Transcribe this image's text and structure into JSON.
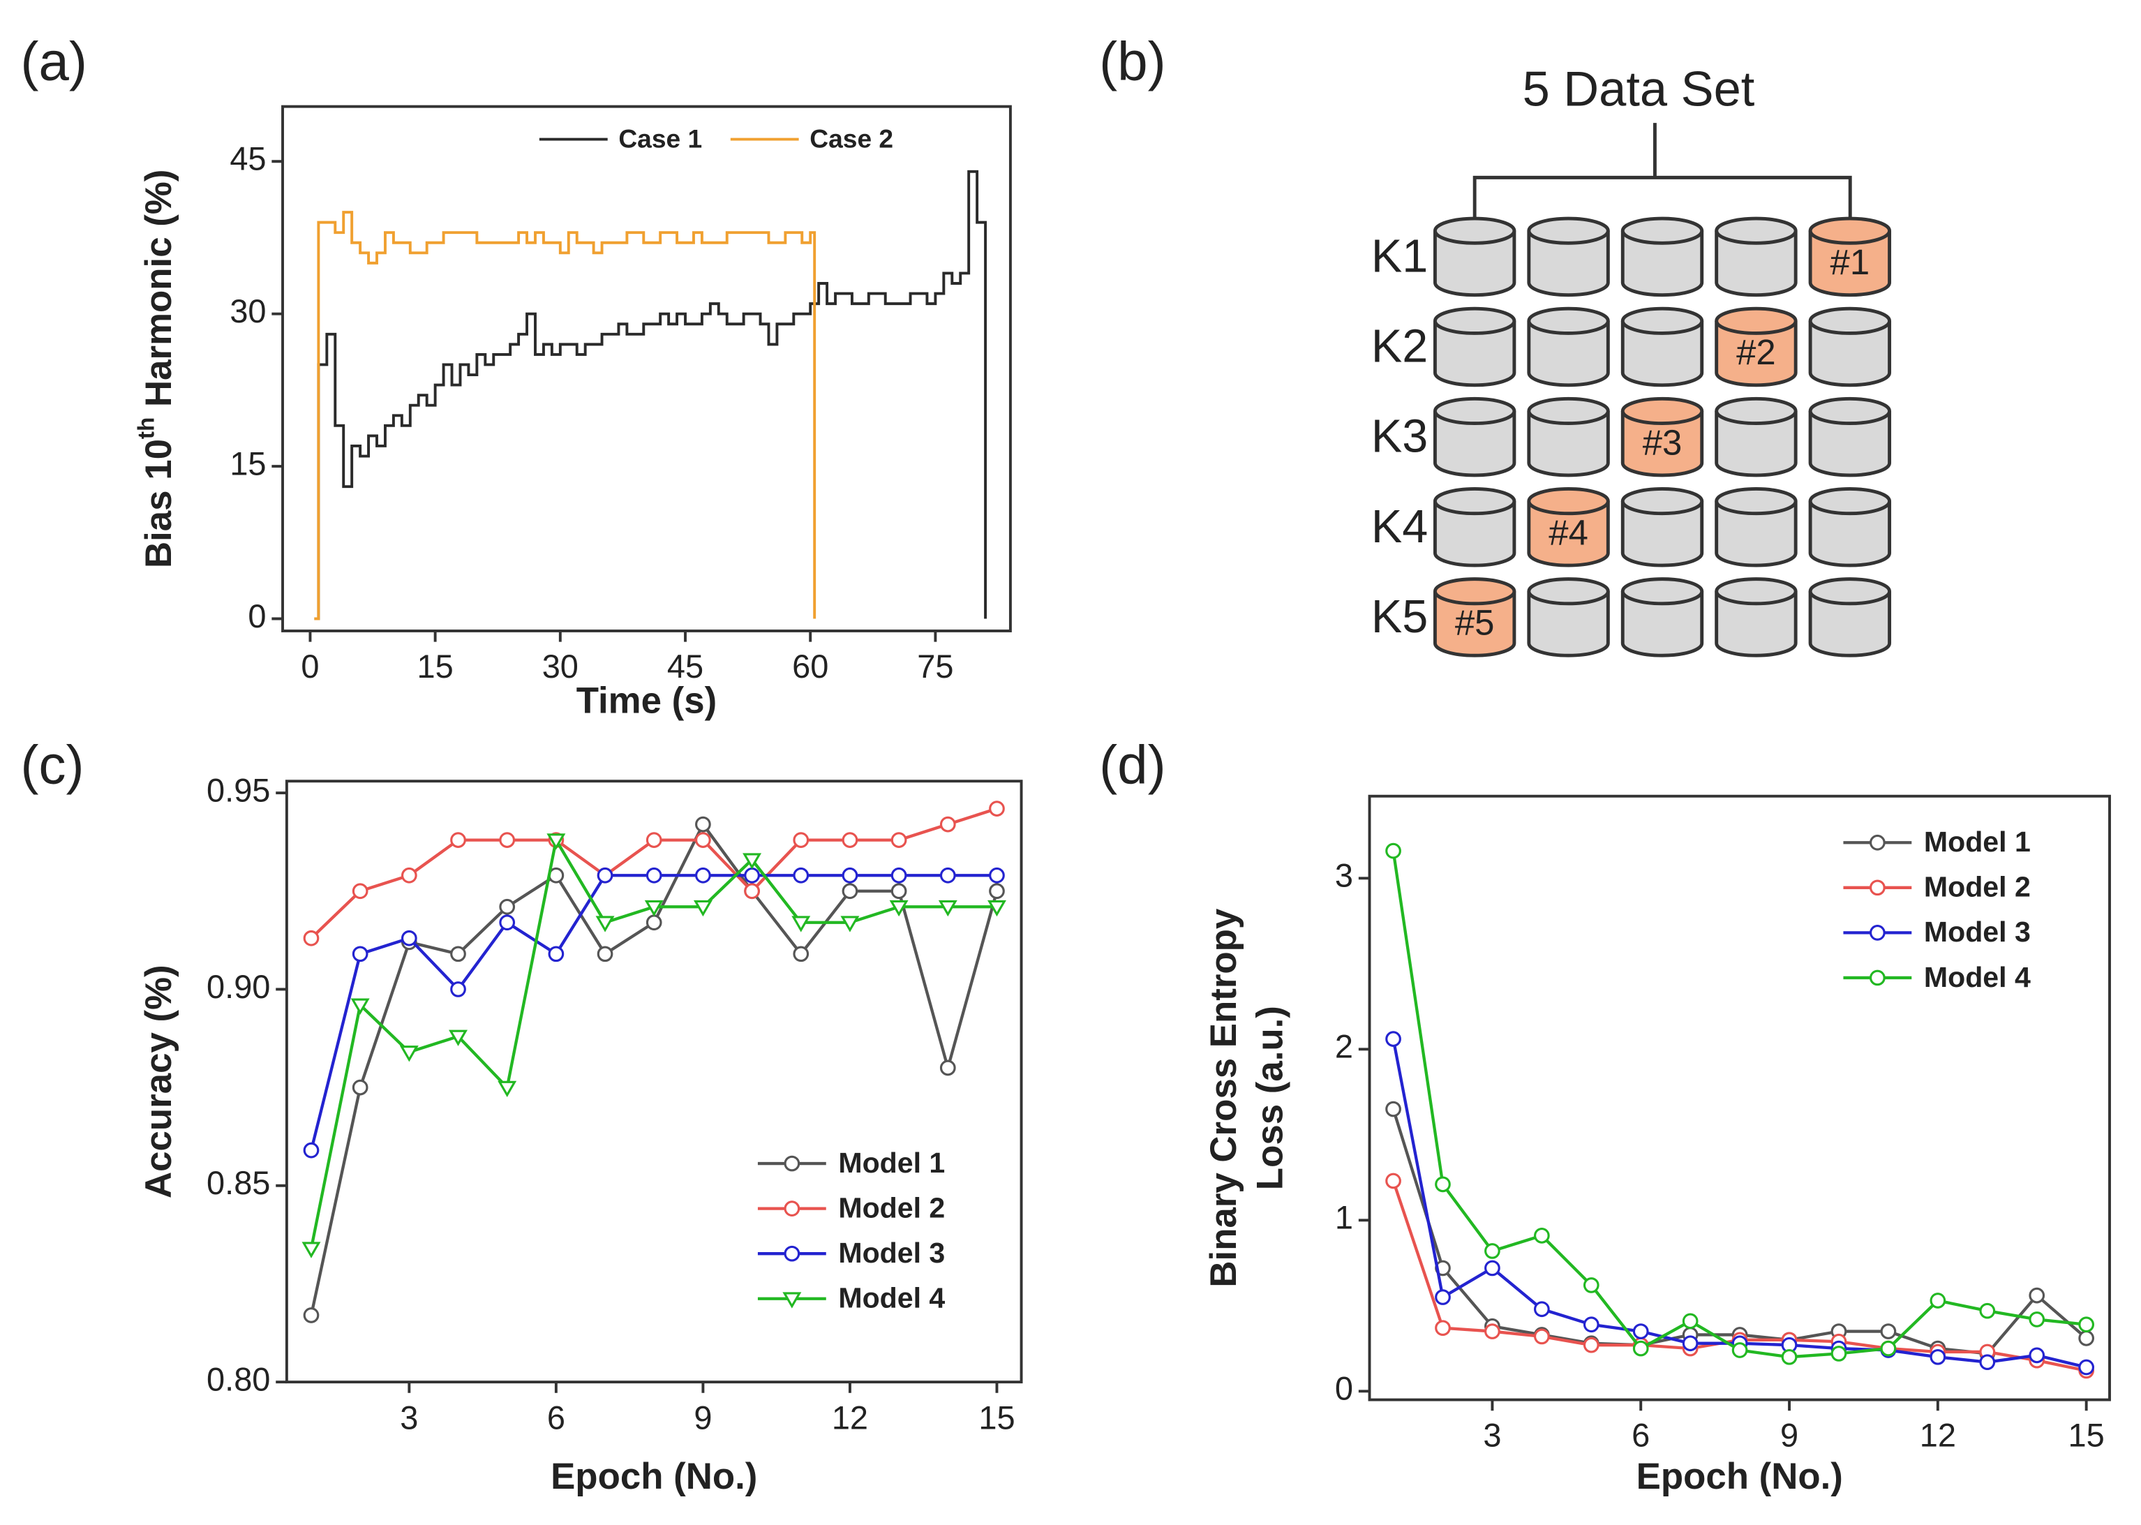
{
  "chart_data": [
    {
      "type": "line",
      "panel_label": "(a)",
      "step": "post",
      "x_label": "Time (s)",
      "y_label": [
        "Bias 10",
        "th",
        " Harmonic (%)"
      ],
      "xlim": [
        -3.3,
        84
      ],
      "ylim": [
        -1.2,
        50.4
      ],
      "xticks": [
        0,
        15,
        30,
        45,
        60,
        75
      ],
      "yticks": [
        0,
        15,
        30,
        45
      ],
      "legend": "upper right",
      "series": [
        {
          "name": "Case 1",
          "color": "#2a2a2a",
          "marker": "none",
          "x": [
            0.5,
            1,
            2,
            3,
            4,
            5,
            6,
            7,
            8,
            9,
            10,
            11,
            12,
            13,
            14,
            15,
            16,
            17,
            18,
            19,
            20,
            21,
            22,
            24,
            25,
            26,
            27,
            28,
            29,
            30,
            32,
            33,
            35,
            37,
            38,
            40,
            42,
            43,
            44,
            45,
            47,
            48,
            49,
            50,
            52,
            54,
            55,
            56,
            58,
            60,
            61,
            62,
            63,
            65,
            67,
            69,
            72,
            74,
            75,
            76,
            77,
            78,
            79,
            80,
            81
          ],
          "values": [
            0,
            25,
            28,
            19,
            13,
            17,
            16,
            18,
            17,
            19,
            20,
            19,
            21,
            22,
            21,
            23,
            25,
            23,
            25,
            24,
            26,
            25,
            26,
            27,
            28,
            30,
            26,
            27,
            26,
            27,
            26,
            27,
            28,
            29,
            28,
            29,
            30,
            29,
            30,
            29,
            30,
            31,
            30,
            29,
            30,
            29,
            27,
            29,
            30,
            31,
            33,
            31,
            32,
            31,
            32,
            31,
            32,
            31,
            32,
            34,
            33,
            34,
            44,
            39,
            0
          ]
        },
        {
          "name": "Case 2",
          "color": "#f0a030",
          "marker": "none",
          "x": [
            0.5,
            1,
            3,
            4,
            5,
            6,
            7,
            8,
            9,
            10,
            12,
            14,
            16,
            20,
            25,
            26,
            27,
            28,
            30,
            31,
            32,
            34,
            35,
            38,
            40,
            42,
            44,
            46,
            47,
            50,
            55,
            57,
            59,
            60,
            60.5
          ],
          "values": [
            0,
            39,
            38,
            40,
            37,
            36,
            35,
            36,
            38,
            37,
            36,
            37,
            38,
            37,
            38,
            37,
            38,
            37,
            36,
            38,
            37,
            36,
            37,
            38,
            37,
            38,
            37,
            38,
            37,
            38,
            37,
            38,
            37,
            38,
            0
          ]
        }
      ]
    },
    {
      "type": "line",
      "panel_label": "(c)",
      "x_label": "Epoch (No.)",
      "y_label": [
        "Accuracy (%)"
      ],
      "xlim": [
        0.5,
        15.5
      ],
      "ylim": [
        0.8,
        0.953
      ],
      "xticks": [
        3,
        6,
        9,
        12,
        15
      ],
      "yticks": [
        {
          "value": 0.8,
          "label": "0.80"
        },
        0.85,
        {
          "value": 0.9,
          "label": "0.90"
        },
        0.95
      ],
      "legend": "lower right",
      "x": [
        1,
        2,
        3,
        4,
        5,
        6,
        7,
        8,
        9,
        10,
        11,
        12,
        13,
        14,
        15
      ],
      "series": [
        {
          "name": "Model 1",
          "color": "#555555",
          "marker": "o",
          "values": [
            0.817,
            0.875,
            0.912,
            0.909,
            0.921,
            0.929,
            0.909,
            0.917,
            0.942,
            0.925,
            0.909,
            0.925,
            0.925,
            0.88,
            0.925
          ]
        },
        {
          "name": "Model 2",
          "color": "#e8534f",
          "marker": "o",
          "values": [
            0.913,
            0.925,
            0.929,
            0.938,
            0.938,
            0.938,
            0.929,
            0.938,
            0.938,
            0.925,
            0.938,
            0.938,
            0.938,
            0.942,
            0.946
          ]
        },
        {
          "name": "Model 3",
          "color": "#2323d0",
          "marker": "o",
          "values": [
            0.859,
            0.909,
            0.913,
            0.9,
            0.917,
            0.909,
            0.929,
            0.929,
            0.929,
            0.929,
            0.929,
            0.929,
            0.929,
            0.929,
            0.929
          ]
        },
        {
          "name": "Model 4",
          "color": "#22b822",
          "marker": "v",
          "values": [
            0.834,
            0.896,
            0.884,
            0.888,
            0.875,
            0.938,
            0.917,
            0.921,
            0.921,
            0.933,
            0.917,
            0.917,
            0.921,
            0.921,
            0.921
          ]
        }
      ]
    },
    {
      "type": "line",
      "panel_label": "(d)",
      "x_label": "Epoch (No.)",
      "y_label": [
        "Binary Cross Entropy",
        "Loss (a.u.)"
      ],
      "xlim": [
        0.52,
        15.47
      ],
      "ylim": [
        -0.05,
        3.48
      ],
      "xticks": [
        3,
        6,
        9,
        12,
        15
      ],
      "yticks": [
        0,
        1,
        2,
        3
      ],
      "legend": "upper right",
      "x": [
        1,
        2,
        3,
        4,
        5,
        6,
        7,
        8,
        9,
        10,
        11,
        12,
        13,
        14,
        15
      ],
      "series": [
        {
          "name": "Model 1",
          "color": "#555555",
          "marker": "o",
          "values": [
            1.65,
            0.72,
            0.38,
            0.33,
            0.28,
            0.27,
            0.33,
            0.33,
            0.3,
            0.35,
            0.35,
            0.25,
            0.22,
            0.56,
            0.31
          ]
        },
        {
          "name": "Model 2",
          "color": "#e8534f",
          "marker": "o",
          "values": [
            1.23,
            0.37,
            0.35,
            0.32,
            0.27,
            0.27,
            0.25,
            0.3,
            0.3,
            0.29,
            0.25,
            0.23,
            0.23,
            0.18,
            0.12
          ]
        },
        {
          "name": "Model 3",
          "color": "#2323d0",
          "marker": "o",
          "values": [
            2.06,
            0.55,
            0.72,
            0.48,
            0.39,
            0.35,
            0.28,
            0.28,
            0.27,
            0.25,
            0.24,
            0.2,
            0.17,
            0.21,
            0.14
          ]
        },
        {
          "name": "Model 4",
          "color": "#22b822",
          "marker": "o",
          "values": [
            3.16,
            1.21,
            0.82,
            0.91,
            0.62,
            0.25,
            0.41,
            0.24,
            0.2,
            0.22,
            0.25,
            0.53,
            0.47,
            0.42,
            0.39
          ]
        }
      ]
    }
  ],
  "diagram": {
    "panel_label": "(b)",
    "title": "5 Data Set",
    "rows": [
      {
        "label": "K1",
        "cells": [
          null,
          null,
          null,
          null,
          "#1"
        ]
      },
      {
        "label": "K2",
        "cells": [
          null,
          null,
          null,
          "#2",
          null
        ]
      },
      {
        "label": "K3",
        "cells": [
          null,
          null,
          "#3",
          null,
          null
        ]
      },
      {
        "label": "K4",
        "cells": [
          null,
          "#4",
          null,
          null,
          null
        ]
      },
      {
        "label": "K5",
        "cells": [
          "#5",
          null,
          null,
          null,
          null
        ]
      }
    ]
  }
}
